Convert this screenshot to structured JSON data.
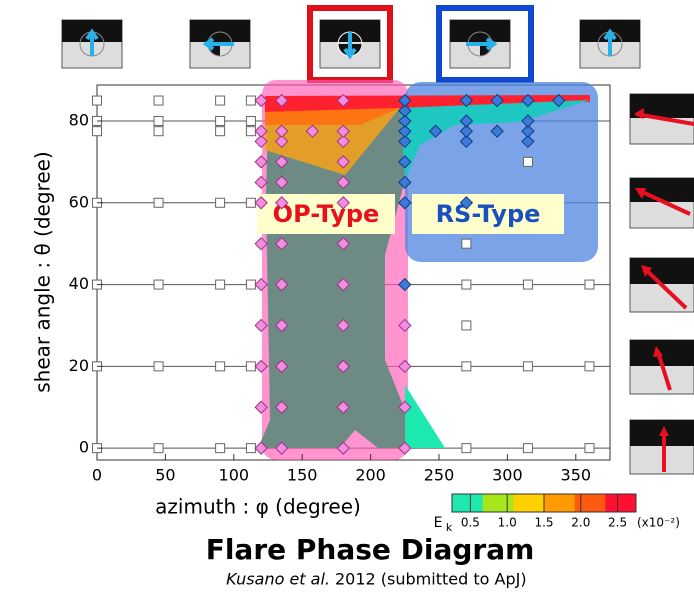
{
  "chart_data": {
    "type": "scatter",
    "title": "Flare Phase Diagram",
    "subtitle": {
      "author": "Kusano et al.",
      "rest": "2012 (submitted to ApJ)"
    },
    "x_label": "azimuth : φ (degree)",
    "y_label": "shear angle : θ (degree)",
    "xlim": [
      0,
      375
    ],
    "ylim": [
      -2.9,
      88.8
    ],
    "xticks": [
      0,
      50,
      100,
      150,
      200,
      250,
      300,
      350
    ],
    "yticks": [
      0,
      20,
      40,
      60,
      80
    ],
    "grid": true,
    "annotations": [
      "OP-Type",
      "RS-Type"
    ],
    "series": [
      {
        "marker": "square",
        "color": "#ffffff",
        "edge": "#666666",
        "x": [
          0,
          45,
          90,
          112.5,
          0,
          45,
          90,
          112.5,
          0,
          45,
          90,
          112.5,
          0,
          45,
          90,
          112.5,
          0,
          45,
          90,
          112.5,
          270,
          315,
          360,
          0,
          45,
          90,
          112.5,
          270,
          315,
          360,
          0,
          45,
          90,
          112.5,
          270,
          315,
          360,
          270,
          270,
          315
        ],
        "y": [
          85,
          85,
          85,
          85,
          80,
          80,
          80,
          80,
          77.5,
          77.5,
          77.5,
          77.5,
          60,
          60,
          60,
          60,
          40,
          40,
          40,
          40,
          40,
          40,
          40,
          20,
          20,
          20,
          20,
          20,
          20,
          20,
          0,
          0,
          0,
          0,
          0,
          0,
          0,
          30,
          50,
          70
        ]
      },
      {
        "marker": "diamond",
        "color": "#f08ee0",
        "edge": "#a0308a",
        "x": [
          120,
          135,
          180,
          120,
          135,
          180,
          120,
          135,
          180,
          120,
          135,
          180,
          120,
          135,
          180,
          120,
          135,
          180,
          120,
          135,
          180,
          120,
          135,
          180,
          120,
          135,
          180,
          120,
          135,
          180,
          120,
          135,
          157.5,
          180,
          120,
          135,
          180,
          225,
          225,
          225,
          225
        ],
        "y": [
          0,
          0,
          0,
          10,
          10,
          10,
          20,
          20,
          20,
          30,
          30,
          30,
          40,
          40,
          40,
          50,
          50,
          50,
          60,
          60,
          60,
          65,
          65,
          65,
          70,
          70,
          70,
          75,
          75,
          75,
          77.5,
          77.5,
          77.5,
          77.5,
          85,
          85,
          85,
          0,
          10,
          20,
          30
        ]
      },
      {
        "marker": "diamond",
        "color": "#3a7ad8",
        "edge": "#123a80",
        "x": [
          225,
          225,
          225,
          225,
          225,
          225,
          225,
          225,
          225,
          247.5,
          270,
          270,
          270,
          270,
          270,
          292.5,
          292.5,
          315,
          315,
          315,
          315,
          337.5
        ],
        "y": [
          40,
          60,
          65,
          70,
          75,
          77.5,
          80,
          82.5,
          85,
          77.5,
          60,
          75,
          77.5,
          80,
          85,
          77.5,
          85,
          75,
          77.5,
          80,
          85,
          85
        ]
      }
    ],
    "colorbar": {
      "label": "E",
      "label_sub": "k",
      "unit": "(x10⁻²)",
      "lim": [
        0.25,
        2.75
      ],
      "ticks": [
        0.5,
        {
          "value": 1,
          "label": "1.0"
        },
        1.5,
        {
          "value": 2,
          "label": "2.0"
        },
        2.5
      ],
      "colors": [
        "#1de8b0",
        "#a6e61a",
        "#ffd000",
        "#ff9a00",
        "#ff5a10",
        "#ff1030"
      ]
    }
  }
}
